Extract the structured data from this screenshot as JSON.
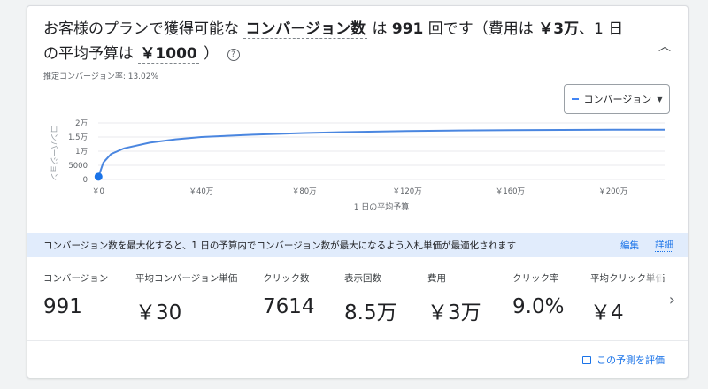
{
  "headline": {
    "part1": "お客様のプランで獲得可能な",
    "metric": "コンバージョン数",
    "part2": "は",
    "conversions": "991",
    "part3": "回です（費用は",
    "cost": "￥3万",
    "part4": "、1 日の平均予算は",
    "budget": "￥1000",
    "part5": "）"
  },
  "estimated_rate": "推定コンバージョン率: 13.02%",
  "metric_selector": {
    "label": "コンバージョン"
  },
  "chart_data": {
    "type": "line",
    "xlabel": "1 日の平均予算",
    "ylabel": "コンバージョン",
    "x_ticks": [
      "￥0",
      "￥40万",
      "￥80万",
      "￥120万",
      "￥160万",
      "￥200万"
    ],
    "y_ticks": [
      "0",
      "5000",
      "1万",
      "1.5万",
      "2万"
    ],
    "x_tick_values": [
      0,
      400000,
      800000,
      1200000,
      1600000,
      2000000
    ],
    "y_tick_values": [
      0,
      5000,
      10000,
      15000,
      20000
    ],
    "xlim": [
      0,
      2200000
    ],
    "ylim": [
      0,
      20000
    ],
    "series": [
      {
        "color": "#4a86e0",
        "x": [
          1000,
          20000,
          50000,
          100000,
          200000,
          300000,
          400000,
          600000,
          800000,
          1000000,
          1200000,
          1400000,
          1600000,
          1800000,
          2000000,
          2200000
        ],
        "y": [
          991,
          6000,
          9000,
          11000,
          13000,
          14200,
          15000,
          15800,
          16400,
          16800,
          17100,
          17300,
          17400,
          17500,
          17550,
          17600
        ]
      }
    ],
    "marker": {
      "x": 1000,
      "y": 991
    }
  },
  "banner": {
    "message": "コンバージョン数を最大化すると、1 日の予算内でコンバージョン数が最大になるよう入札単価が最適化されます",
    "edit": "編集",
    "detail": "詳細"
  },
  "stats": [
    {
      "label": "コンバージョン",
      "value": "991"
    },
    {
      "label": "平均コンバージョン単価",
      "value": "￥30"
    },
    {
      "label": "クリック数",
      "value": "7614"
    },
    {
      "label": "表示回数",
      "value": "8.5万"
    },
    {
      "label": "費用",
      "value": "￥3万"
    },
    {
      "label": "クリック率",
      "value": "9.0%"
    },
    {
      "label": "平均クリック単価",
      "value": "￥4"
    }
  ],
  "evaluate": {
    "label": "この予測を評価"
  }
}
